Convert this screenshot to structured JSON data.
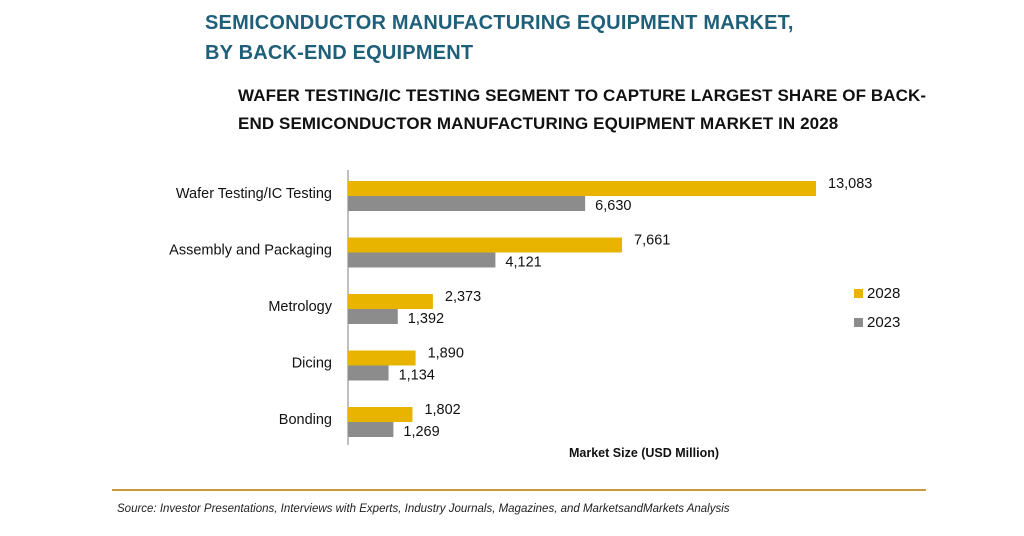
{
  "header": {
    "title_line1": "SEMICONDUCTOR MANUFACTURING EQUIPMENT MARKET,",
    "title_line2": "BY BACK-END EQUIPMENT",
    "subtitle_line1": "WAFER TESTING/IC TESTING SEGMENT TO CAPTURE LARGEST SHARE OF BACK-",
    "subtitle_line2": "END SEMICONDUCTOR MANUFACTURING EQUIPMENT MARKET IN 2028"
  },
  "footer": {
    "source": "Source: Investor Presentations, Interviews with Experts, Industry Journals, Magazines, and MarketsandMarkets Analysis"
  },
  "colors": {
    "series_2028": "#e8b400",
    "series_2023": "#8c8c8c",
    "title": "#1f5f7a",
    "rule": "#c89a3c"
  },
  "chart_data": {
    "type": "bar",
    "orientation": "horizontal",
    "categories": [
      "Wafer Testing/IC Testing",
      "Assembly and Packaging",
      "Metrology",
      "Dicing",
      "Bonding"
    ],
    "series": [
      {
        "name": "2028",
        "values": [
          13083,
          7661,
          2373,
          1890,
          1802
        ],
        "labels": [
          "13,083",
          "7,661",
          "2,373",
          "1,890",
          "1,802"
        ]
      },
      {
        "name": "2023",
        "values": [
          6630,
          4121,
          1392,
          1134,
          1269
        ],
        "labels": [
          "6,630",
          "4,121",
          "1,392",
          "1,134",
          "1,269"
        ]
      }
    ],
    "xlabel": "Market Size (USD Million)",
    "xlim": [
      0,
      13083
    ],
    "grid": false,
    "legend_position": "right"
  }
}
